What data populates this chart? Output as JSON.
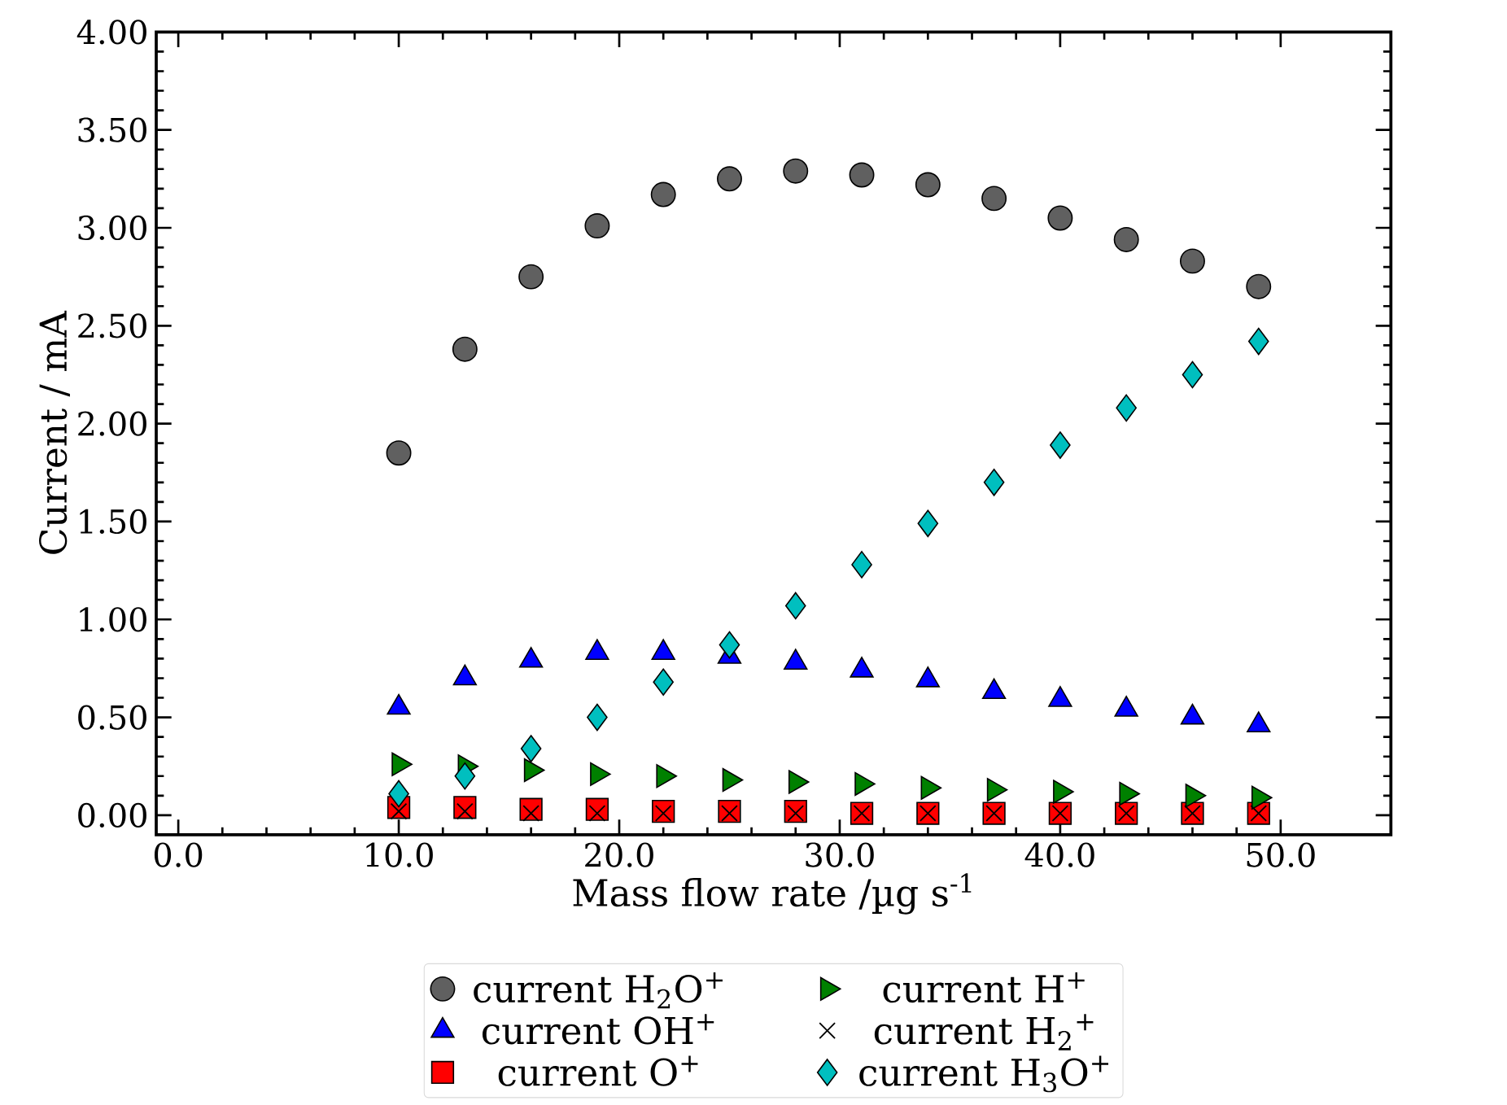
{
  "chart_data": {
    "type": "scatter",
    "xlabel": "Mass flow rate /µg s$^{-1}$",
    "ylabel": "Current / mA",
    "x": [
      10,
      13,
      16,
      19,
      22,
      25,
      28,
      31,
      34,
      37,
      40,
      43,
      46,
      49
    ],
    "series": [
      {
        "name": "current H$_{2}$O$^{+}$",
        "color": "#606060",
        "marker": "circle",
        "values": [
          1.85,
          2.38,
          2.75,
          3.01,
          3.17,
          3.25,
          3.29,
          3.27,
          3.22,
          3.15,
          3.05,
          2.94,
          2.83,
          2.7
        ]
      },
      {
        "name": "current OH$^{+}$",
        "color": "#0000ff",
        "marker": "triangle",
        "values": [
          0.55,
          0.7,
          0.79,
          0.83,
          0.83,
          0.81,
          0.78,
          0.74,
          0.69,
          0.63,
          0.59,
          0.54,
          0.5,
          0.46
        ]
      },
      {
        "name": "current O$^{+}$",
        "color": "#ff0000",
        "marker": "square",
        "values": [
          0.04,
          0.04,
          0.03,
          0.03,
          0.02,
          0.02,
          0.02,
          0.01,
          0.01,
          0.01,
          0.01,
          0.01,
          0.01,
          0.01
        ]
      },
      {
        "name": "current H$^{+}$",
        "color": "#008000",
        "marker": "triangle-right",
        "values": [
          0.26,
          0.25,
          0.23,
          0.21,
          0.2,
          0.18,
          0.17,
          0.16,
          0.14,
          0.13,
          0.12,
          0.11,
          0.1,
          0.09
        ]
      },
      {
        "name": "current H$_{2}$$^{+}$",
        "color": "#000000",
        "marker": "cross",
        "values": [
          0.02,
          0.02,
          0.01,
          0.01,
          0.01,
          0.01,
          0.01,
          0.01,
          0.01,
          0.01,
          0.01,
          0.01,
          0.01,
          0.01
        ]
      },
      {
        "name": "current H$_{3}$O$^{+}$",
        "color": "#00bfbf",
        "marker": "diamond",
        "values": [
          0.11,
          0.2,
          0.34,
          0.5,
          0.68,
          0.87,
          1.07,
          1.28,
          1.49,
          1.7,
          1.89,
          2.08,
          2.25,
          2.42
        ]
      }
    ],
    "xlim": [
      -1,
      55
    ],
    "ylim": [
      -0.1,
      4.0
    ],
    "xticks": [
      {
        "value": 0,
        "label": "0.0"
      },
      {
        "value": 10,
        "label": "10.0"
      },
      {
        "value": 20,
        "label": "20.0"
      },
      {
        "value": 30,
        "label": "30.0"
      },
      {
        "value": 40,
        "label": "40.0"
      },
      {
        "value": 50,
        "label": "50.0"
      }
    ],
    "yticks": [
      {
        "value": 0,
        "label": "0.00"
      },
      {
        "value": 0.5,
        "label": "0.50"
      },
      {
        "value": 1,
        "label": "1.00"
      },
      {
        "value": 1.5,
        "label": "1.50"
      },
      {
        "value": 2,
        "label": "2.00"
      },
      {
        "value": 2.5,
        "label": "2.50"
      },
      {
        "value": 3,
        "label": "3.00"
      },
      {
        "value": 3.5,
        "label": "3.50"
      },
      {
        "value": 4,
        "label": "4.00"
      }
    ],
    "grid": false,
    "legend": "bottom"
  }
}
